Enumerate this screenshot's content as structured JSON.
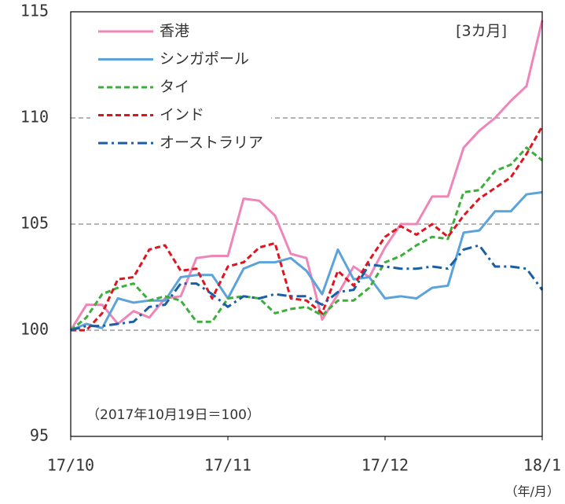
{
  "chart_data": {
    "type": "line",
    "annotations": [
      "[3カ月]",
      "（2017年10月19日＝100）",
      "（年/月）"
    ],
    "xlim": [
      0,
      3
    ],
    "xticks": [
      {
        "value": 0,
        "label": "17/10"
      },
      {
        "value": 1,
        "label": "17/11"
      },
      {
        "value": 2,
        "label": "17/12"
      },
      {
        "value": 3,
        "label": "18/1"
      }
    ],
    "x": [
      0,
      0.1,
      0.2,
      0.3,
      0.4,
      0.5,
      0.6,
      0.7,
      0.8,
      0.9,
      1.0,
      1.1,
      1.2,
      1.3,
      1.4,
      1.5,
      1.6,
      1.7,
      1.8,
      1.9,
      2.0,
      2.1,
      2.2,
      2.3,
      2.4,
      2.5,
      2.6,
      2.7,
      2.8,
      2.9,
      3.0
    ],
    "ylim": [
      95,
      115
    ],
    "yticks": [
      95,
      100,
      105,
      110,
      115
    ],
    "grid": true,
    "legend": "upper left",
    "series": [
      {
        "name": "香港",
        "color": "#ef86b8",
        "dash": "solid",
        "values": [
          100,
          101.2,
          101.2,
          100.3,
          100.9,
          100.6,
          101.5,
          101.6,
          103.4,
          103.5,
          103.5,
          106.2,
          106.1,
          105.4,
          103.6,
          103.4,
          100.5,
          101.7,
          103.0,
          102.5,
          103.9,
          105.0,
          105.0,
          106.3,
          106.3,
          108.6,
          109.4,
          110.0,
          110.8,
          111.5,
          114.6
        ]
      },
      {
        "name": "シンガポール",
        "color": "#5ba3d9",
        "dash": "solid",
        "values": [
          100,
          100.3,
          100.1,
          101.5,
          101.3,
          101.4,
          101.4,
          102.5,
          102.6,
          102.6,
          101.5,
          102.9,
          103.2,
          103.2,
          103.4,
          102.8,
          101.7,
          103.8,
          102.4,
          102.5,
          101.5,
          101.6,
          101.5,
          102.0,
          102.1,
          104.6,
          104.7,
          105.6,
          105.6,
          106.4,
          106.5
        ]
      },
      {
        "name": "タイ",
        "color": "#3cae3c",
        "dash": "dashed",
        "values": [
          100,
          100.6,
          101.7,
          102.0,
          102.2,
          101.4,
          101.6,
          101.4,
          100.4,
          100.4,
          101.5,
          101.6,
          101.5,
          100.8,
          101.0,
          101.1,
          100.7,
          101.4,
          101.4,
          102.0,
          103.2,
          103.5,
          104.0,
          104.4,
          104.3,
          106.5,
          106.6,
          107.5,
          107.8,
          108.6,
          108.0
        ]
      },
      {
        "name": "インド",
        "color": "#e0141e",
        "dash": "dashed",
        "values": [
          100,
          100.0,
          100.8,
          102.4,
          102.5,
          103.8,
          104.0,
          102.8,
          102.9,
          101.5,
          103.0,
          103.2,
          103.9,
          104.1,
          101.5,
          101.4,
          100.8,
          102.8,
          102.1,
          103.3,
          104.4,
          104.9,
          104.5,
          105.0,
          104.4,
          105.4,
          106.2,
          106.7,
          107.2,
          108.3,
          109.6
        ]
      },
      {
        "name": "オーストラリア",
        "color": "#1a5fa3",
        "dash": "dashdot",
        "values": [
          100,
          100.2,
          100.2,
          100.3,
          100.4,
          101.1,
          101.2,
          102.2,
          102.2,
          101.7,
          101.1,
          101.6,
          101.5,
          101.7,
          101.6,
          101.6,
          101.2,
          101.8,
          101.9,
          103.1,
          103.0,
          102.9,
          102.9,
          103.0,
          102.9,
          103.8,
          104.0,
          103.0,
          103.0,
          102.9,
          101.9
        ]
      }
    ]
  }
}
